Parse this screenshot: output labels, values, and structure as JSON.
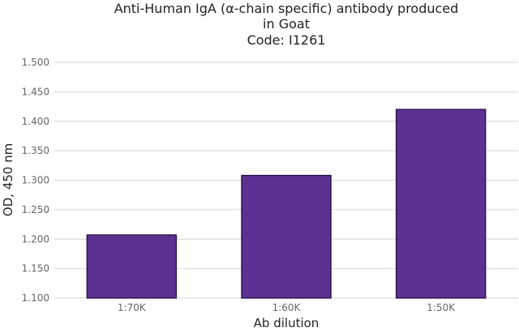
{
  "chart_data": {
    "type": "bar",
    "title_lines": [
      "Anti-Human IgA (α-chain specific) antibody produced",
      "in Goat",
      "Code: I1261"
    ],
    "xlabel": "Ab dilution",
    "ylabel": "OD, 450 nm",
    "categories": [
      "1:70K",
      "1:60K",
      "1:50K"
    ],
    "values": [
      1.207,
      1.308,
      1.42
    ],
    "ylim": [
      1.1,
      1.5
    ],
    "yticks": [
      "1.100",
      "1.150",
      "1.200",
      "1.250",
      "1.300",
      "1.350",
      "1.400",
      "1.450",
      "1.500"
    ],
    "grid": true,
    "legend": "none",
    "bar_color": "#5b3292",
    "bar_stroke": "#2e1550",
    "grid_color": "#d4d4d4"
  }
}
